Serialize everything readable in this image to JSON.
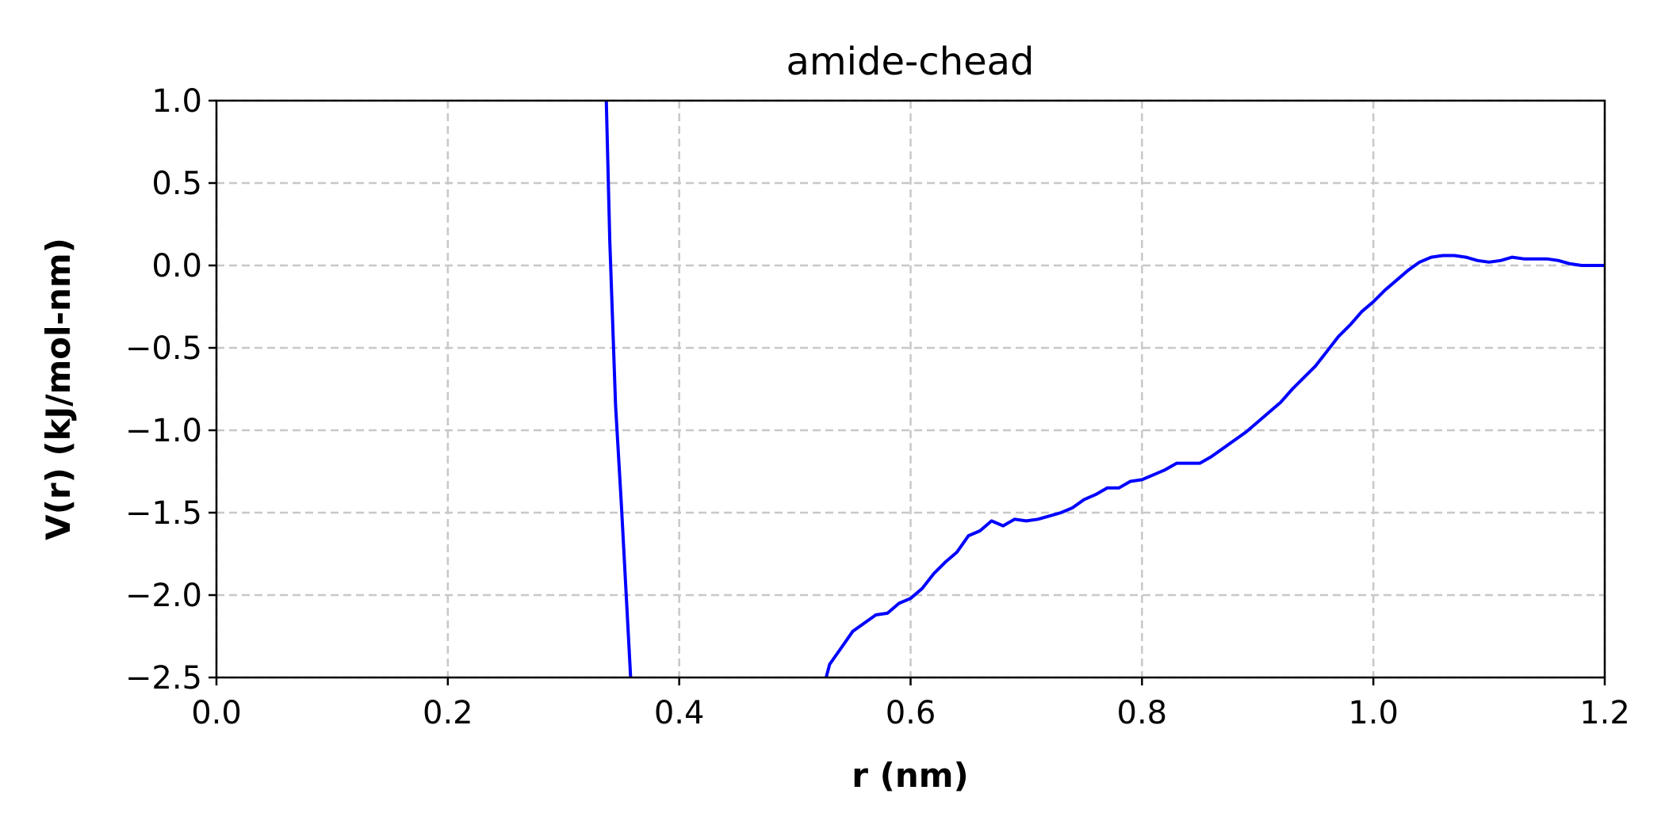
{
  "chart_data": {
    "type": "line",
    "title": "amide-chead",
    "xlabel": "r (nm)",
    "ylabel": "V(r)  (kJ/mol-nm)",
    "xlim": [
      0.0,
      1.2
    ],
    "ylim": [
      -2.5,
      1.0
    ],
    "xticks": [
      "0.0",
      "0.2",
      "0.4",
      "0.6",
      "0.8",
      "1.0",
      "1.2"
    ],
    "yticks": [
      "1.0",
      "0.5",
      "0.0",
      "−0.5",
      "−1.0",
      "−1.5",
      "−2.0",
      "−2.5"
    ],
    "grid": true,
    "series": [
      {
        "color": "#0000ff",
        "segments": [
          [
            [
              0.337,
              1.0
            ],
            [
              0.34,
              0.15
            ],
            [
              0.345,
              -0.85
            ],
            [
              0.35,
              -1.45
            ],
            [
              0.358,
              -2.5
            ]
          ],
          [
            [
              0.527,
              -2.5
            ],
            [
              0.53,
              -2.42
            ],
            [
              0.54,
              -2.32
            ],
            [
              0.55,
              -2.22
            ],
            [
              0.56,
              -2.17
            ],
            [
              0.57,
              -2.12
            ],
            [
              0.58,
              -2.11
            ],
            [
              0.59,
              -2.05
            ],
            [
              0.6,
              -2.02
            ],
            [
              0.61,
              -1.96
            ],
            [
              0.62,
              -1.87
            ],
            [
              0.63,
              -1.8
            ],
            [
              0.64,
              -1.74
            ],
            [
              0.65,
              -1.64
            ],
            [
              0.66,
              -1.61
            ],
            [
              0.67,
              -1.55
            ],
            [
              0.68,
              -1.58
            ],
            [
              0.69,
              -1.54
            ],
            [
              0.7,
              -1.55
            ],
            [
              0.71,
              -1.54
            ],
            [
              0.72,
              -1.52
            ],
            [
              0.73,
              -1.5
            ],
            [
              0.74,
              -1.47
            ],
            [
              0.75,
              -1.42
            ],
            [
              0.76,
              -1.39
            ],
            [
              0.77,
              -1.35
            ],
            [
              0.78,
              -1.35
            ],
            [
              0.79,
              -1.31
            ],
            [
              0.8,
              -1.3
            ],
            [
              0.81,
              -1.27
            ],
            [
              0.82,
              -1.24
            ],
            [
              0.83,
              -1.2
            ],
            [
              0.84,
              -1.2
            ],
            [
              0.85,
              -1.2
            ],
            [
              0.86,
              -1.16
            ],
            [
              0.87,
              -1.11
            ],
            [
              0.88,
              -1.06
            ],
            [
              0.89,
              -1.01
            ],
            [
              0.9,
              -0.95
            ],
            [
              0.91,
              -0.89
            ],
            [
              0.92,
              -0.83
            ],
            [
              0.93,
              -0.75
            ],
            [
              0.94,
              -0.68
            ],
            [
              0.95,
              -0.61
            ],
            [
              0.96,
              -0.52
            ],
            [
              0.97,
              -0.43
            ],
            [
              0.98,
              -0.36
            ],
            [
              0.99,
              -0.28
            ],
            [
              1.0,
              -0.22
            ],
            [
              1.01,
              -0.15
            ],
            [
              1.02,
              -0.09
            ],
            [
              1.03,
              -0.03
            ],
            [
              1.04,
              0.02
            ],
            [
              1.05,
              0.05
            ],
            [
              1.06,
              0.06
            ],
            [
              1.07,
              0.06
            ],
            [
              1.08,
              0.05
            ],
            [
              1.09,
              0.03
            ],
            [
              1.1,
              0.02
            ],
            [
              1.11,
              0.03
            ],
            [
              1.12,
              0.05
            ],
            [
              1.13,
              0.04
            ],
            [
              1.14,
              0.04
            ],
            [
              1.15,
              0.04
            ],
            [
              1.16,
              0.03
            ],
            [
              1.17,
              0.01
            ],
            [
              1.18,
              0.0
            ],
            [
              1.2,
              0.0
            ]
          ]
        ]
      }
    ]
  }
}
